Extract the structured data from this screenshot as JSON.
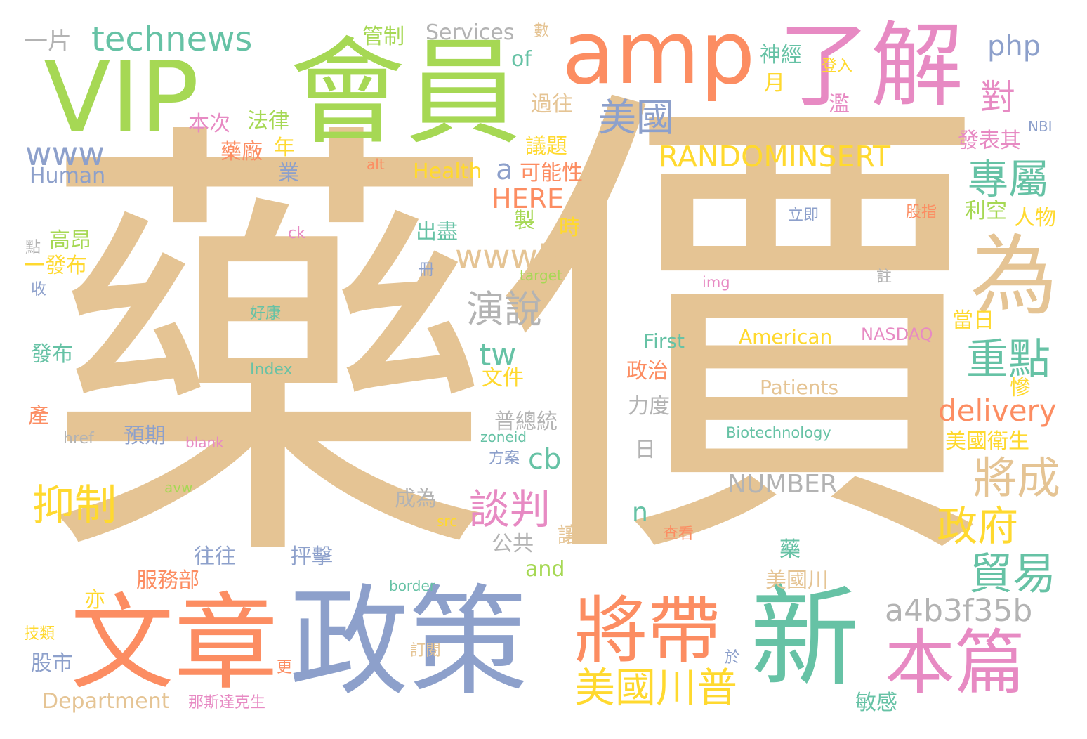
{
  "words": {
    "yao": {
      "text": "藥",
      "color": "#e5c494"
    },
    "jia": {
      "text": "價",
      "color": "#e5c494"
    },
    "huiyuan": {
      "text": "會員",
      "color": "#a6d854"
    },
    "vip": {
      "text": "VIP",
      "color": "#a6d854"
    },
    "amp": {
      "text": "amp",
      "color": "#fc8d62"
    },
    "liaojie": {
      "text": "了解",
      "color": "#e78ac3"
    },
    "technews": {
      "text": "technews",
      "color": "#66c2a5"
    },
    "zhengce": {
      "text": "政策",
      "color": "#8da0cb"
    },
    "wenzhang": {
      "text": "文章",
      "color": "#fc8d62"
    },
    "xin": {
      "text": "新",
      "color": "#66c2a5"
    },
    "jiangdai": {
      "text": "將帶",
      "color": "#fc8d62"
    },
    "benpian": {
      "text": "本篇",
      "color": "#e78ac3"
    },
    "wei": {
      "text": "為",
      "color": "#e5c494"
    },
    "meiguochuanpu": {
      "text": "美國川普",
      "color": "#ffd92f"
    },
    "randominsert": {
      "text": "RANDOMINSERT",
      "color": "#ffd92f"
    },
    "meiguo": {
      "text": "美國",
      "color": "#8da0cb"
    },
    "zhuanshu": {
      "text": "專屬",
      "color": "#66c2a5"
    },
    "zhongdian": {
      "text": "重點",
      "color": "#66c2a5"
    },
    "delivery": {
      "text": "delivery",
      "color": "#fc8d62"
    },
    "jiangcheng": {
      "text": "將成",
      "color": "#e5c494"
    },
    "zhengfu": {
      "text": "政府",
      "color": "#ffd92f"
    },
    "maoyi": {
      "text": "貿易",
      "color": "#66c2a5"
    },
    "hash": {
      "text": "a4b3f35b",
      "color": "#b3b3b3"
    },
    "www5": {
      "text": "www5",
      "color": "#e5c494"
    },
    "yanshuo": {
      "text": "演說",
      "color": "#b3b3b3"
    },
    "tanpan": {
      "text": "談判",
      "color": "#e78ac3"
    },
    "yizhi": {
      "text": "抑制",
      "color": "#ffd92f"
    },
    "www": {
      "text": "www",
      "color": "#8da0cb"
    },
    "php": {
      "text": "php",
      "color": "#8da0cb"
    },
    "dui": {
      "text": "對",
      "color": "#e78ac3"
    },
    "tw": {
      "text": "tw",
      "color": "#66c2a5"
    },
    "a": {
      "text": "a",
      "color": "#8da0cb"
    },
    "here": {
      "text": "HERE",
      "color": "#fc8d62"
    },
    "kenengxing": {
      "text": "可能性",
      "color": "#fc8d62"
    },
    "cb": {
      "text": "cb",
      "color": "#66c2a5"
    },
    "number": {
      "text": "NUMBER",
      "color": "#b3b3b3"
    },
    "patients": {
      "text": "Patients",
      "color": "#e5c494"
    },
    "biotech": {
      "text": "Biotechnology",
      "color": "#66c2a5"
    },
    "american": {
      "text": "American",
      "color": "#ffd92f"
    },
    "nasdaq": {
      "text": "NASDAQ",
      "color": "#e78ac3"
    },
    "first": {
      "text": "First",
      "color": "#66c2a5"
    },
    "health": {
      "text": "Health",
      "color": "#ffd92f"
    },
    "human": {
      "text": "Human",
      "color": "#8da0cb"
    },
    "services": {
      "text": "Services",
      "color": "#b3b3b3"
    },
    "department": {
      "text": "Department",
      "color": "#e5c494"
    },
    "of": {
      "text": "of",
      "color": "#66c2a5"
    },
    "and": {
      "text": "and",
      "color": "#a6d854"
    },
    "n": {
      "text": "n",
      "color": "#66c2a5"
    },
    "yipian": {
      "text": "一片",
      "color": "#b3b3b3"
    },
    "guanzhi": {
      "text": "管制",
      "color": "#a6d854"
    },
    "shu": {
      "text": "數",
      "color": "#e5c494"
    },
    "shenjing": {
      "text": "神經",
      "color": "#66c2a5"
    },
    "dengru": {
      "text": "登入",
      "color": "#ffd92f"
    },
    "yue": {
      "text": "月",
      "color": "#ffd92f"
    },
    "guowang": {
      "text": "過往",
      "color": "#e5c494"
    },
    "lan": {
      "text": "濫",
      "color": "#e78ac3"
    },
    "nbi": {
      "text": "NBI",
      "color": "#8da0cb"
    },
    "fabiaoqi": {
      "text": "發表其",
      "color": "#e78ac3"
    },
    "benci": {
      "text": "本次",
      "color": "#e78ac3"
    },
    "falv": {
      "text": "法律",
      "color": "#a6d854"
    },
    "yaochang": {
      "text": "藥廠",
      "color": "#fc8d62"
    },
    "nian": {
      "text": "年",
      "color": "#ffd92f"
    },
    "yiti": {
      "text": "議題",
      "color": "#ffd92f"
    },
    "alt": {
      "text": "alt",
      "color": "#fc8d62"
    },
    "shangzhang": {
      "text": "上漲",
      "color": "#e5c494"
    },
    "ye": {
      "text": "業",
      "color": "#8da0cb"
    },
    "gaoang": {
      "text": "高昂",
      "color": "#a6d854"
    },
    "dian": {
      "text": "點",
      "color": "#b3b3b3"
    },
    "yifabu": {
      "text": "一發布",
      "color": "#ffd92f"
    },
    "shou": {
      "text": "收",
      "color": "#8da0cb"
    },
    "ck": {
      "text": "ck",
      "color": "#e78ac3"
    },
    "chujin": {
      "text": "出盡",
      "color": "#66c2a5"
    },
    "zhi": {
      "text": "製",
      "color": "#a6d854"
    },
    "shi": {
      "text": "時",
      "color": "#ffd92f"
    },
    "ce": {
      "text": "冊",
      "color": "#8da0cb"
    },
    "target": {
      "text": "target",
      "color": "#a6d854"
    },
    "haokang": {
      "text": "好康",
      "color": "#66c2a5"
    },
    "img": {
      "text": "img",
      "color": "#e78ac3"
    },
    "zhu": {
      "text": "註",
      "color": "#b3b3b3"
    },
    "lijikong": {
      "text": "立即",
      "color": "#8da0cb"
    },
    "guzhi": {
      "text": "股指",
      "color": "#fc8d62"
    },
    "likong": {
      "text": "利空",
      "color": "#a6d854"
    },
    "renwu": {
      "text": "人物",
      "color": "#ffd92f"
    },
    "dangri": {
      "text": "當日",
      "color": "#ffd92f"
    },
    "fabu": {
      "text": "發布",
      "color": "#66c2a5"
    },
    "index": {
      "text": "Index",
      "color": "#66c2a5"
    },
    "wenjian": {
      "text": "文件",
      "color": "#ffd92f"
    },
    "zhengzhi": {
      "text": "政治",
      "color": "#fc8d62"
    },
    "lidu": {
      "text": "力度",
      "color": "#b3b3b3"
    },
    "can": {
      "text": "慘",
      "color": "#ffd92f"
    },
    "chan": {
      "text": "產",
      "color": "#fc8d62"
    },
    "yuqi": {
      "text": "預期",
      "color": "#8da0cb"
    },
    "puzongtong": {
      "text": "普總統",
      "color": "#b3b3b3"
    },
    "href": {
      "text": "href",
      "color": "#b3b3b3"
    },
    "blank": {
      "text": "blank",
      "color": "#e78ac3"
    },
    "zoneid": {
      "text": "zoneid",
      "color": "#66c2a5"
    },
    "ri": {
      "text": "日",
      "color": "#b3b3b3"
    },
    "meiguoweisheng": {
      "text": "美國衛生",
      "color": "#ffd92f"
    },
    "fangan": {
      "text": "方案",
      "color": "#8da0cb"
    },
    "avw": {
      "text": "avw",
      "color": "#a6d854"
    },
    "chengwei": {
      "text": "成為",
      "color": "#b3b3b3"
    },
    "src": {
      "text": "src",
      "color": "#ffd92f"
    },
    "chakan": {
      "text": "查看",
      "color": "#fc8d62"
    },
    "rang": {
      "text": "讓",
      "color": "#e5c494"
    },
    "gonggong": {
      "text": "公共",
      "color": "#b3b3b3"
    },
    "wangwang": {
      "text": "往往",
      "color": "#8da0cb"
    },
    "pengji": {
      "text": "抨擊",
      "color": "#8da0cb"
    },
    "yao2": {
      "text": "藥",
      "color": "#66c2a5"
    },
    "fuwubu": {
      "text": "服務部",
      "color": "#fc8d62"
    },
    "meiguochuan": {
      "text": "美國川",
      "color": "#e5c494"
    },
    "yi": {
      "text": "亦",
      "color": "#ffd92f"
    },
    "border": {
      "text": "border",
      "color": "#66c2a5"
    },
    "jilei": {
      "text": "技類",
      "color": "#ffd92f"
    },
    "gushi": {
      "text": "股市",
      "color": "#8da0cb"
    },
    "dingyue": {
      "text": "訂閱",
      "color": "#e5c494"
    },
    "geng": {
      "text": "更",
      "color": "#fc8d62"
    },
    "yu": {
      "text": "於",
      "color": "#8da0cb"
    },
    "nasidake": {
      "text": "那斯達克生",
      "color": "#e78ac3"
    },
    "mingan": {
      "text": "敏感",
      "color": "#66c2a5"
    }
  }
}
